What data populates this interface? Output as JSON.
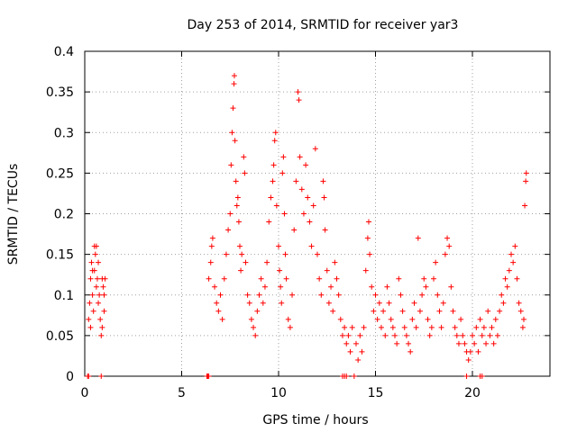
{
  "chart_data": {
    "type": "scatter",
    "title": "Day 253 of 2014, SRMTID for receiver yar3",
    "xlabel": "GPS time / hours",
    "ylabel": "SRMTID / TECUs",
    "xlim": [
      0,
      24
    ],
    "ylim": [
      0,
      0.4
    ],
    "x_ticks": [
      0,
      5,
      10,
      15,
      20
    ],
    "x_tick_labels": [
      "0",
      "5",
      "10",
      "15",
      "20"
    ],
    "y_ticks": [
      0,
      0.05,
      0.1,
      0.15,
      0.2,
      0.25,
      0.3,
      0.35,
      0.4
    ],
    "y_tick_labels": [
      "0",
      "0.05",
      "0.1",
      "0.15",
      "0.2",
      "0.25",
      "0.3",
      "0.35",
      "0.4"
    ],
    "grid": true,
    "marker": "+",
    "color": "#ff0000",
    "series": [
      {
        "name": "SRMTID",
        "points": [
          [
            0.15,
            0.0
          ],
          [
            0.2,
            0.0
          ],
          [
            0.85,
            0.0
          ],
          [
            0.2,
            0.07
          ],
          [
            0.25,
            0.09
          ],
          [
            0.3,
            0.12
          ],
          [
            0.35,
            0.14
          ],
          [
            0.4,
            0.1
          ],
          [
            0.45,
            0.08
          ],
          [
            0.5,
            0.13
          ],
          [
            0.5,
            0.16
          ],
          [
            0.55,
            0.15
          ],
          [
            0.6,
            0.11
          ],
          [
            0.65,
            0.12
          ],
          [
            0.7,
            0.09
          ],
          [
            0.75,
            0.1
          ],
          [
            0.8,
            0.07
          ],
          [
            0.85,
            0.05
          ],
          [
            0.9,
            0.06
          ],
          [
            0.95,
            0.11
          ],
          [
            1.0,
            0.1
          ],
          [
            1.05,
            0.12
          ],
          [
            0.3,
            0.06
          ],
          [
            0.4,
            0.13
          ],
          [
            0.6,
            0.16
          ],
          [
            0.7,
            0.14
          ],
          [
            0.9,
            0.12
          ],
          [
            1.0,
            0.08
          ],
          [
            6.3,
            0.0
          ],
          [
            6.35,
            0.0
          ],
          [
            6.4,
            0.0
          ],
          [
            6.4,
            0.12
          ],
          [
            6.5,
            0.14
          ],
          [
            6.55,
            0.16
          ],
          [
            6.6,
            0.17
          ],
          [
            6.7,
            0.11
          ],
          [
            6.8,
            0.09
          ],
          [
            6.9,
            0.08
          ],
          [
            7.0,
            0.1
          ],
          [
            7.1,
            0.07
          ],
          [
            7.2,
            0.12
          ],
          [
            7.3,
            0.15
          ],
          [
            7.4,
            0.18
          ],
          [
            7.5,
            0.2
          ],
          [
            7.55,
            0.26
          ],
          [
            7.6,
            0.3
          ],
          [
            7.65,
            0.33
          ],
          [
            7.7,
            0.36
          ],
          [
            7.72,
            0.37
          ],
          [
            7.75,
            0.29
          ],
          [
            7.8,
            0.24
          ],
          [
            7.85,
            0.21
          ],
          [
            7.9,
            0.22
          ],
          [
            7.95,
            0.19
          ],
          [
            8.0,
            0.16
          ],
          [
            8.05,
            0.13
          ],
          [
            8.1,
            0.15
          ],
          [
            8.2,
            0.27
          ],
          [
            8.25,
            0.25
          ],
          [
            8.3,
            0.14
          ],
          [
            8.4,
            0.1
          ],
          [
            8.5,
            0.09
          ],
          [
            8.6,
            0.07
          ],
          [
            8.7,
            0.06
          ],
          [
            8.8,
            0.05
          ],
          [
            8.9,
            0.08
          ],
          [
            9.0,
            0.1
          ],
          [
            9.1,
            0.12
          ],
          [
            9.2,
            0.09
          ],
          [
            9.3,
            0.11
          ],
          [
            9.4,
            0.14
          ],
          [
            9.5,
            0.19
          ],
          [
            9.6,
            0.22
          ],
          [
            9.7,
            0.24
          ],
          [
            9.75,
            0.26
          ],
          [
            9.8,
            0.29
          ],
          [
            9.85,
            0.3
          ],
          [
            9.9,
            0.21
          ],
          [
            10.0,
            0.16
          ],
          [
            10.05,
            0.13
          ],
          [
            10.1,
            0.11
          ],
          [
            10.15,
            0.09
          ],
          [
            10.2,
            0.25
          ],
          [
            10.25,
            0.27
          ],
          [
            10.3,
            0.2
          ],
          [
            10.35,
            0.15
          ],
          [
            10.4,
            0.12
          ],
          [
            10.5,
            0.07
          ],
          [
            10.6,
            0.06
          ],
          [
            10.7,
            0.1
          ],
          [
            10.8,
            0.18
          ],
          [
            10.9,
            0.24
          ],
          [
            11.0,
            0.35
          ],
          [
            11.05,
            0.34
          ],
          [
            11.1,
            0.27
          ],
          [
            11.2,
            0.23
          ],
          [
            11.3,
            0.2
          ],
          [
            11.4,
            0.26
          ],
          [
            11.5,
            0.22
          ],
          [
            11.6,
            0.19
          ],
          [
            11.7,
            0.16
          ],
          [
            11.8,
            0.21
          ],
          [
            11.9,
            0.28
          ],
          [
            12.0,
            0.15
          ],
          [
            12.1,
            0.12
          ],
          [
            12.2,
            0.1
          ],
          [
            12.3,
            0.24
          ],
          [
            12.35,
            0.22
          ],
          [
            12.4,
            0.18
          ],
          [
            12.5,
            0.13
          ],
          [
            12.6,
            0.09
          ],
          [
            12.7,
            0.11
          ],
          [
            12.8,
            0.08
          ],
          [
            12.9,
            0.14
          ],
          [
            13.0,
            0.12
          ],
          [
            13.1,
            0.1
          ],
          [
            13.2,
            0.07
          ],
          [
            13.3,
            0.05
          ],
          [
            13.4,
            0.06
          ],
          [
            13.5,
            0.04
          ],
          [
            13.6,
            0.05
          ],
          [
            13.7,
            0.03
          ],
          [
            13.8,
            0.06
          ],
          [
            13.3,
            0.0
          ],
          [
            13.4,
            0.0
          ],
          [
            13.5,
            0.0
          ],
          [
            13.9,
            0.0
          ],
          [
            14.0,
            0.04
          ],
          [
            14.1,
            0.02
          ],
          [
            14.2,
            0.05
          ],
          [
            14.3,
            0.03
          ],
          [
            14.4,
            0.06
          ],
          [
            14.5,
            0.13
          ],
          [
            14.6,
            0.17
          ],
          [
            14.65,
            0.19
          ],
          [
            14.7,
            0.15
          ],
          [
            14.8,
            0.11
          ],
          [
            14.9,
            0.08
          ],
          [
            15.0,
            0.1
          ],
          [
            15.1,
            0.07
          ],
          [
            15.2,
            0.09
          ],
          [
            15.3,
            0.06
          ],
          [
            15.4,
            0.08
          ],
          [
            15.5,
            0.05
          ],
          [
            15.6,
            0.11
          ],
          [
            15.7,
            0.09
          ],
          [
            15.8,
            0.07
          ],
          [
            15.9,
            0.06
          ],
          [
            16.0,
            0.05
          ],
          [
            16.1,
            0.04
          ],
          [
            16.2,
            0.12
          ],
          [
            16.3,
            0.1
          ],
          [
            16.4,
            0.08
          ],
          [
            16.5,
            0.06
          ],
          [
            16.6,
            0.05
          ],
          [
            16.7,
            0.04
          ],
          [
            16.8,
            0.03
          ],
          [
            16.9,
            0.07
          ],
          [
            17.0,
            0.09
          ],
          [
            17.1,
            0.06
          ],
          [
            17.2,
            0.17
          ],
          [
            17.3,
            0.08
          ],
          [
            17.4,
            0.1
          ],
          [
            17.5,
            0.12
          ],
          [
            17.6,
            0.11
          ],
          [
            17.7,
            0.07
          ],
          [
            17.8,
            0.05
          ],
          [
            17.9,
            0.06
          ],
          [
            18.0,
            0.12
          ],
          [
            18.1,
            0.14
          ],
          [
            18.2,
            0.1
          ],
          [
            18.3,
            0.08
          ],
          [
            18.4,
            0.06
          ],
          [
            18.5,
            0.09
          ],
          [
            18.6,
            0.15
          ],
          [
            18.7,
            0.17
          ],
          [
            18.8,
            0.16
          ],
          [
            18.9,
            0.11
          ],
          [
            19.0,
            0.08
          ],
          [
            19.1,
            0.06
          ],
          [
            19.2,
            0.05
          ],
          [
            19.3,
            0.04
          ],
          [
            19.4,
            0.07
          ],
          [
            19.5,
            0.05
          ],
          [
            19.6,
            0.04
          ],
          [
            19.7,
            0.03
          ],
          [
            19.7,
            0.0
          ],
          [
            20.4,
            0.0
          ],
          [
            20.5,
            0.0
          ],
          [
            19.8,
            0.02
          ],
          [
            19.9,
            0.03
          ],
          [
            20.0,
            0.05
          ],
          [
            20.1,
            0.04
          ],
          [
            20.2,
            0.06
          ],
          [
            20.3,
            0.03
          ],
          [
            20.4,
            0.07
          ],
          [
            20.5,
            0.05
          ],
          [
            20.6,
            0.06
          ],
          [
            20.7,
            0.04
          ],
          [
            20.8,
            0.08
          ],
          [
            20.9,
            0.05
          ],
          [
            21.0,
            0.06
          ],
          [
            21.1,
            0.04
          ],
          [
            21.2,
            0.07
          ],
          [
            21.3,
            0.05
          ],
          [
            21.4,
            0.08
          ],
          [
            21.5,
            0.1
          ],
          [
            21.6,
            0.09
          ],
          [
            21.7,
            0.12
          ],
          [
            21.8,
            0.11
          ],
          [
            21.9,
            0.13
          ],
          [
            22.0,
            0.15
          ],
          [
            22.1,
            0.14
          ],
          [
            22.2,
            0.16
          ],
          [
            22.3,
            0.12
          ],
          [
            22.4,
            0.09
          ],
          [
            22.5,
            0.08
          ],
          [
            22.6,
            0.06
          ],
          [
            22.65,
            0.07
          ],
          [
            22.7,
            0.21
          ],
          [
            22.75,
            0.24
          ],
          [
            22.78,
            0.25
          ]
        ]
      }
    ]
  }
}
